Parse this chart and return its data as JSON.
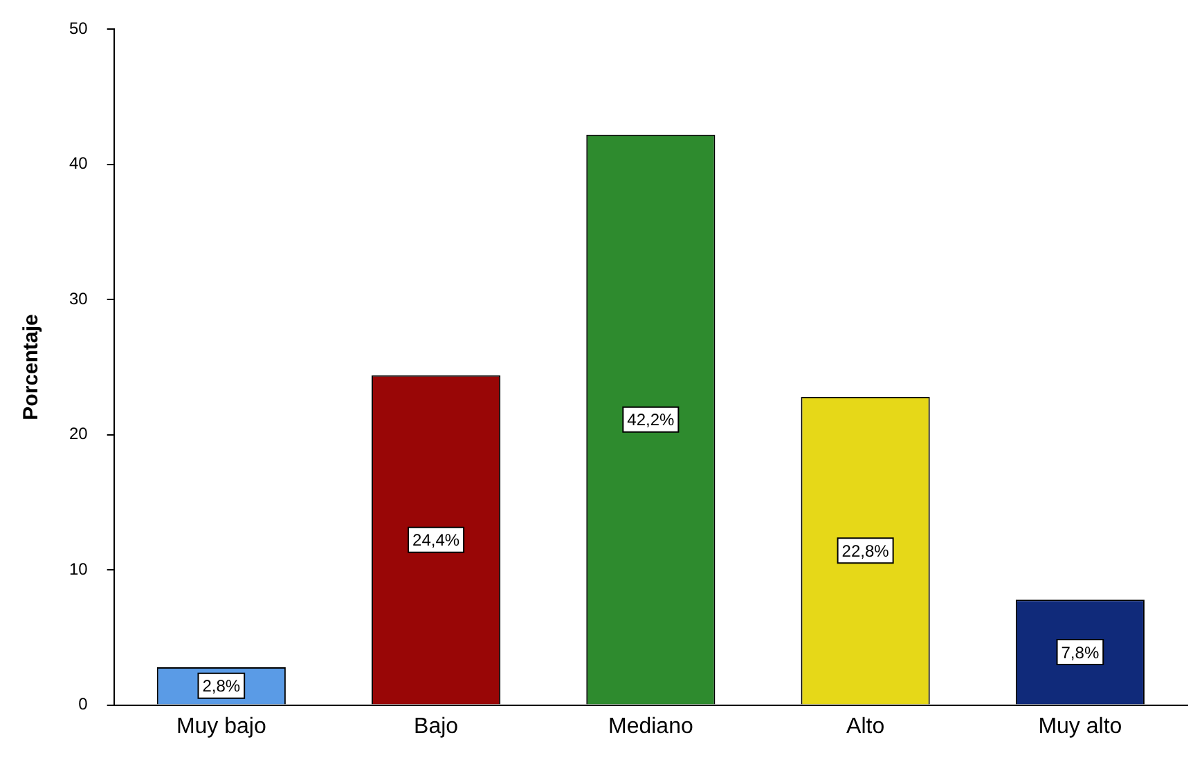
{
  "chart_data": {
    "type": "bar",
    "ylabel": "Porcentaje",
    "categories": [
      "Muy bajo",
      "Bajo",
      "Mediano",
      "Alto",
      "Muy alto"
    ],
    "values": [
      2.8,
      24.4,
      42.2,
      22.8,
      7.8
    ],
    "colors": [
      "#5a9be6",
      "#990606",
      "#2e8b2e",
      "#e6d818",
      "#102a7a"
    ],
    "value_labels": [
      "2,8%",
      "24,4%",
      "42,2%",
      "22,8%",
      "7,8%"
    ],
    "ylim": [
      0,
      50
    ],
    "yticks": [
      0,
      10,
      20,
      30,
      40,
      50
    ],
    "grid": false,
    "legend": false
  }
}
